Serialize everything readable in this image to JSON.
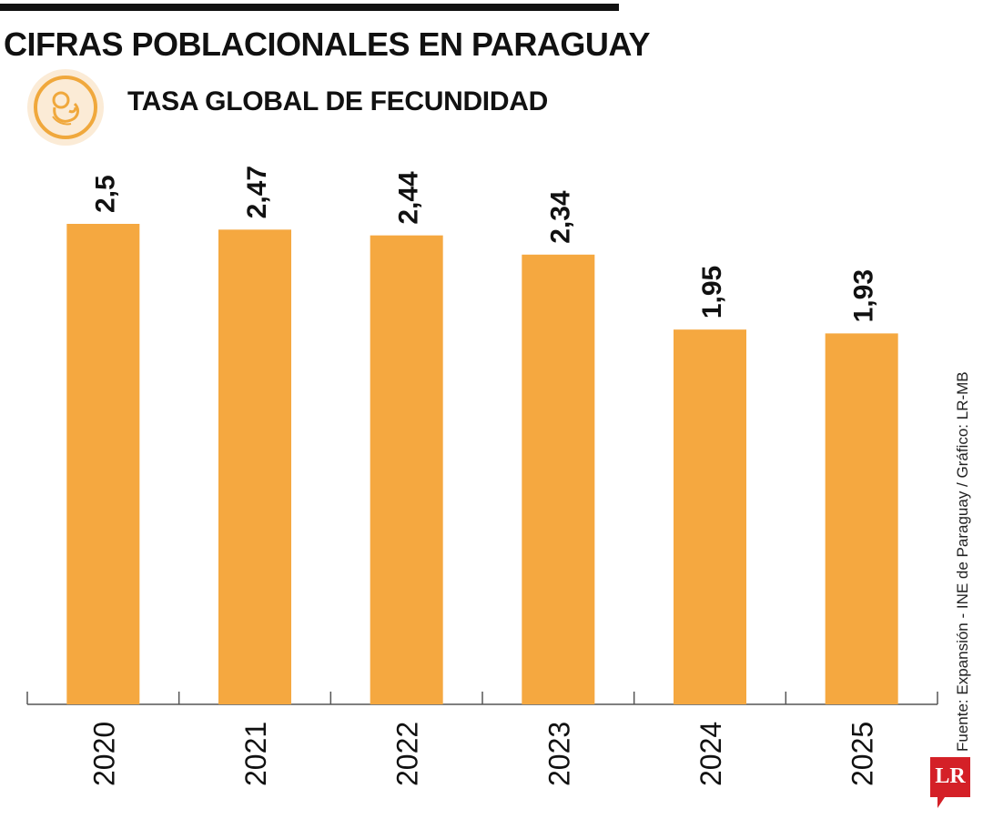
{
  "header": {
    "title": "CIFRAS POBLACIONALES EN PARAGUAY",
    "subtitle": "TASA GLOBAL DE FECUNDIDAD",
    "icon": "baby-icon"
  },
  "chart_data": {
    "type": "bar",
    "title": "CIFRAS POBLACIONALES EN PARAGUAY",
    "subtitle": "TASA GLOBAL DE FECUNDIDAD",
    "categories": [
      "2020",
      "2021",
      "2022",
      "2023",
      "2024",
      "2025"
    ],
    "values": [
      2.5,
      2.47,
      2.44,
      2.34,
      1.95,
      1.93
    ],
    "value_labels": [
      "2,5",
      "2,47",
      "2,44",
      "2,34",
      "1,95",
      "1,93"
    ],
    "xlabel": "",
    "ylabel": "",
    "ylim": [
      0,
      2.5
    ],
    "grid": false,
    "legend": "none",
    "bar_color": "#F5A840"
  },
  "footer": {
    "source": "Fuente: Expansión - INE de Paraguay / Gráfico: LR-MB",
    "logo_text": "LR",
    "logo_color": "#D42027"
  }
}
